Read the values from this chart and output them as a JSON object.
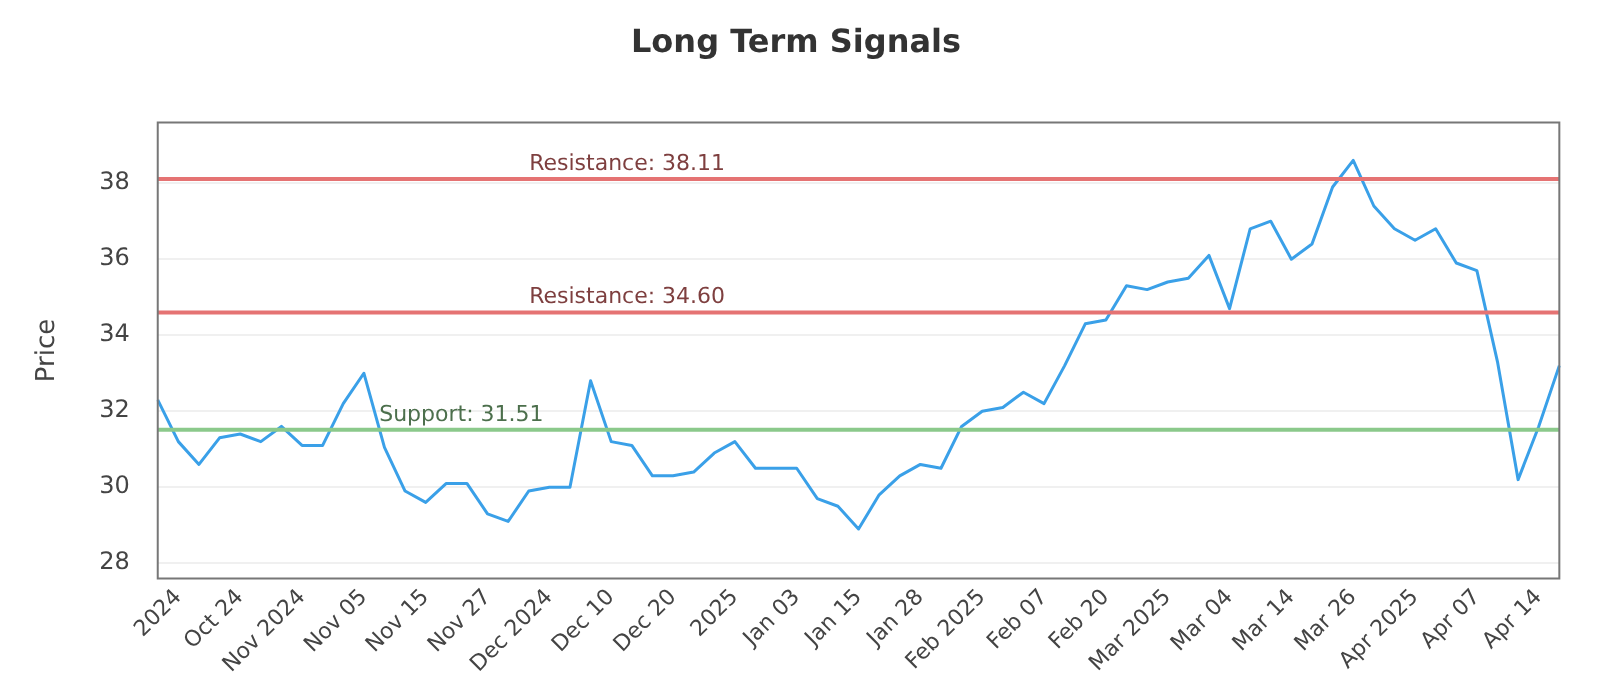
{
  "chart_data": {
    "type": "line",
    "title": "Long Term Signals",
    "ylabel": "Price",
    "categories": [
      null,
      "2024",
      null,
      null,
      "Oct 24",
      null,
      null,
      "Nov 2024",
      null,
      null,
      "Nov 05",
      null,
      null,
      "Nov 15",
      null,
      null,
      "Nov 27",
      null,
      null,
      "Dec 2024",
      null,
      null,
      "Dec 10",
      null,
      null,
      "Dec 20",
      null,
      null,
      "2025",
      null,
      null,
      "Jan 03",
      null,
      null,
      "Jan 15",
      null,
      null,
      "Jan 28",
      null,
      null,
      "Feb 2025",
      null,
      null,
      "Feb 07",
      null,
      null,
      "Feb 20",
      null,
      null,
      "Mar 2025",
      null,
      null,
      "Mar 04",
      null,
      null,
      "Mar 14",
      null,
      null,
      "Mar 26",
      null,
      null,
      "Apr 2025",
      null,
      null,
      "Apr 07",
      null,
      null,
      "Apr 14",
      null
    ],
    "series": [
      {
        "color": "#3aa0e8",
        "values": [
          32.3,
          31.2,
          30.6,
          31.3,
          31.4,
          31.2,
          31.6,
          31.1,
          31.1,
          32.2,
          33.0,
          31.05,
          29.9,
          29.6,
          30.1,
          30.1,
          29.3,
          29.1,
          29.9,
          30.0,
          30.0,
          32.8,
          31.2,
          31.1,
          30.3,
          30.3,
          30.4,
          30.9,
          31.2,
          30.5,
          30.5,
          30.5,
          29.7,
          29.5,
          28.9,
          29.8,
          30.3,
          30.6,
          30.5,
          31.6,
          32.0,
          32.1,
          32.5,
          32.2,
          33.2,
          34.3,
          34.4,
          35.3,
          35.2,
          35.4,
          35.5,
          36.1,
          34.7,
          36.8,
          37.0,
          36.0,
          36.4,
          37.9,
          38.6,
          37.4,
          36.8,
          36.5,
          36.8,
          35.9,
          35.7,
          33.3,
          30.2,
          31.6,
          33.2
        ]
      }
    ],
    "ylim": [
      27.6,
      39.6
    ],
    "yticks": [
      28,
      30,
      32,
      34,
      36,
      38
    ],
    "grid": "y",
    "legend": false,
    "marker": "none",
    "line_style": "solid",
    "ref_lines": [
      {
        "axis": "y",
        "value": 38.11,
        "label": "Resistance: 38.11",
        "color": "#e57373"
      },
      {
        "axis": "y",
        "value": 34.6,
        "label": "Resistance: 34.60",
        "color": "#e57373"
      },
      {
        "axis": "y",
        "value": 31.51,
        "label": "Support: 31.51",
        "color": "#8bc98b"
      }
    ]
  }
}
